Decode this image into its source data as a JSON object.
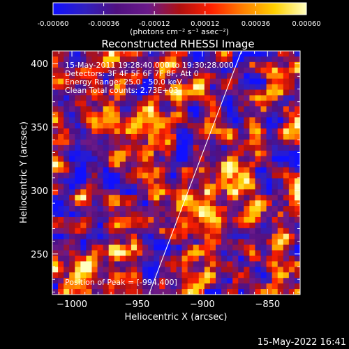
{
  "chart_data": {
    "type": "heatmap",
    "title": "Reconstructed RHESSI Image",
    "xlabel": "Heliocentric X (arcsec)",
    "ylabel": "Heliocentric Y (arcsec)",
    "xlim": [
      -1015,
      -825
    ],
    "ylim": [
      218,
      410
    ],
    "x_ticks": [
      -1000,
      -950,
      -900,
      -850
    ],
    "y_ticks": [
      250,
      300,
      350,
      400
    ],
    "colorbar": {
      "label": "(photons cm⁻² s⁻¹ asec⁻²)",
      "range": [
        -0.0006,
        0.0006
      ],
      "ticks": [
        "-0.00060",
        "-0.00036",
        "-0.00012",
        "0.00012",
        "0.00036",
        "0.00060"
      ],
      "colormap_stops": [
        "#1010ff",
        "#3020c0",
        "#501080",
        "#6a1a8a",
        "#b01010",
        "#ff2000",
        "#ff8000",
        "#ffd000",
        "#ffffc0"
      ]
    },
    "annotations": {
      "time_range": "15-May-2011 19:28:40.000 to 19:30:28.000",
      "detectors": "Detectors: 3F 4F 5F 6F 7F 8F, Att 0",
      "energy": "Energy Range: 25.0 - 50.0 keV",
      "clean": "Clean    Total counts: 2.73E+03",
      "peak": "Position of Peak = [-994,400]"
    },
    "limb_line": {
      "x": [
        -941,
        -870
      ],
      "y": [
        218,
        410
      ]
    },
    "image_grid": {
      "cols": 44,
      "rows": 44,
      "seed": 73
    }
  },
  "footer": {
    "timestamp": "15-May-2022 16:41"
  },
  "colors": {
    "background": "#000000",
    "foreground": "#ffffff"
  }
}
